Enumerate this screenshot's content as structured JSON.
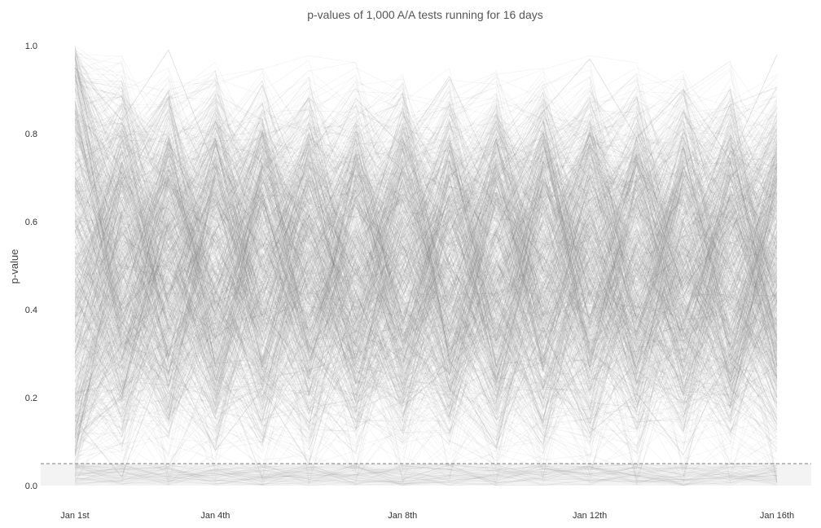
{
  "chart_data": {
    "type": "line",
    "title": "p-values of 1,000 A/A tests running for 16 days",
    "xlabel": "",
    "ylabel": "p-value",
    "x": [
      1,
      2,
      3,
      4,
      5,
      6,
      7,
      8,
      9,
      10,
      11,
      12,
      13,
      14,
      15,
      16
    ],
    "x_tick_labels": [
      {
        "day": 1,
        "label": "Jan 1st"
      },
      {
        "day": 4,
        "label": "Jan 4th"
      },
      {
        "day": 8,
        "label": "Jan 8th"
      },
      {
        "day": 12,
        "label": "Jan 12th"
      },
      {
        "day": 16,
        "label": "Jan 16th"
      }
    ],
    "y_ticks": [
      "0.0",
      "0.2",
      "0.4",
      "0.6",
      "0.8",
      "1.0"
    ],
    "ylim": [
      0,
      1
    ],
    "xlim": [
      1,
      16
    ],
    "threshold": 0.05,
    "threshold_shading": true,
    "n_series": 1000,
    "grid": false,
    "line_color": "#7a7a7a",
    "threshold_color": "#555555",
    "shade_color": "#d0d0d0",
    "sample_series": [
      {
        "values": [
          0.62,
          0.41,
          0.78,
          0.55,
          0.33,
          0.71,
          0.48,
          0.86,
          0.29,
          0.64,
          0.52,
          0.38,
          0.74,
          0.45,
          0.59,
          0.67
        ]
      },
      {
        "values": [
          0.15,
          0.02,
          0.31,
          0.08,
          0.22,
          0.05,
          0.44,
          0.18,
          0.27,
          0.09,
          0.36,
          0.12,
          0.21,
          0.07,
          0.3,
          0.14
        ]
      },
      {
        "values": [
          0.95,
          0.83,
          0.99,
          0.72,
          0.91,
          0.64,
          0.88,
          0.77,
          0.93,
          0.69,
          0.85,
          0.97,
          0.79,
          0.9,
          0.74,
          0.98
        ]
      }
    ]
  }
}
